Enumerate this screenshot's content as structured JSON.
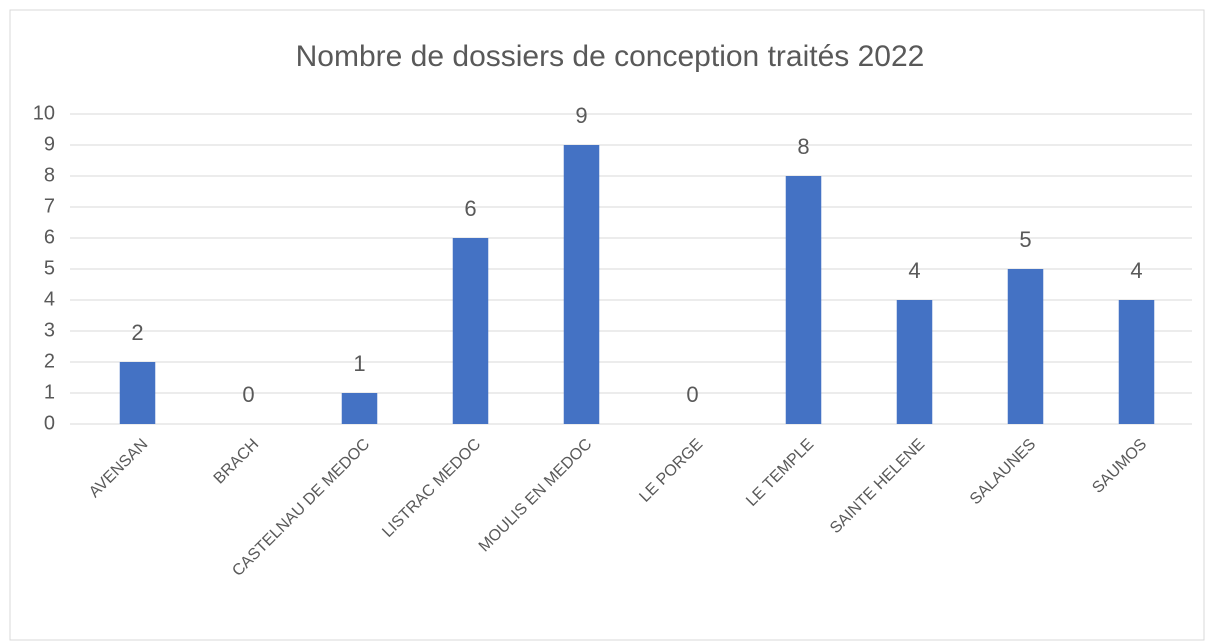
{
  "chart_data": {
    "type": "bar",
    "title": "Nombre de dossiers de conception traités 2022",
    "categories": [
      "AVENSAN",
      "BRACH",
      "CASTELNAU DE MEDOC",
      "LISTRAC MEDOC",
      "MOULIS EN MEDOC",
      "LE PORGE",
      "LE TEMPLE",
      "SAINTE HELENE",
      "SALAUNES",
      "SAUMOS"
    ],
    "values": [
      2,
      0,
      1,
      6,
      9,
      0,
      8,
      4,
      5,
      4
    ],
    "color": "#4472c4",
    "ylim": [
      0,
      10
    ],
    "yticks": [
      0,
      1,
      2,
      3,
      4,
      5,
      6,
      7,
      8,
      9,
      10
    ],
    "grid": true
  }
}
